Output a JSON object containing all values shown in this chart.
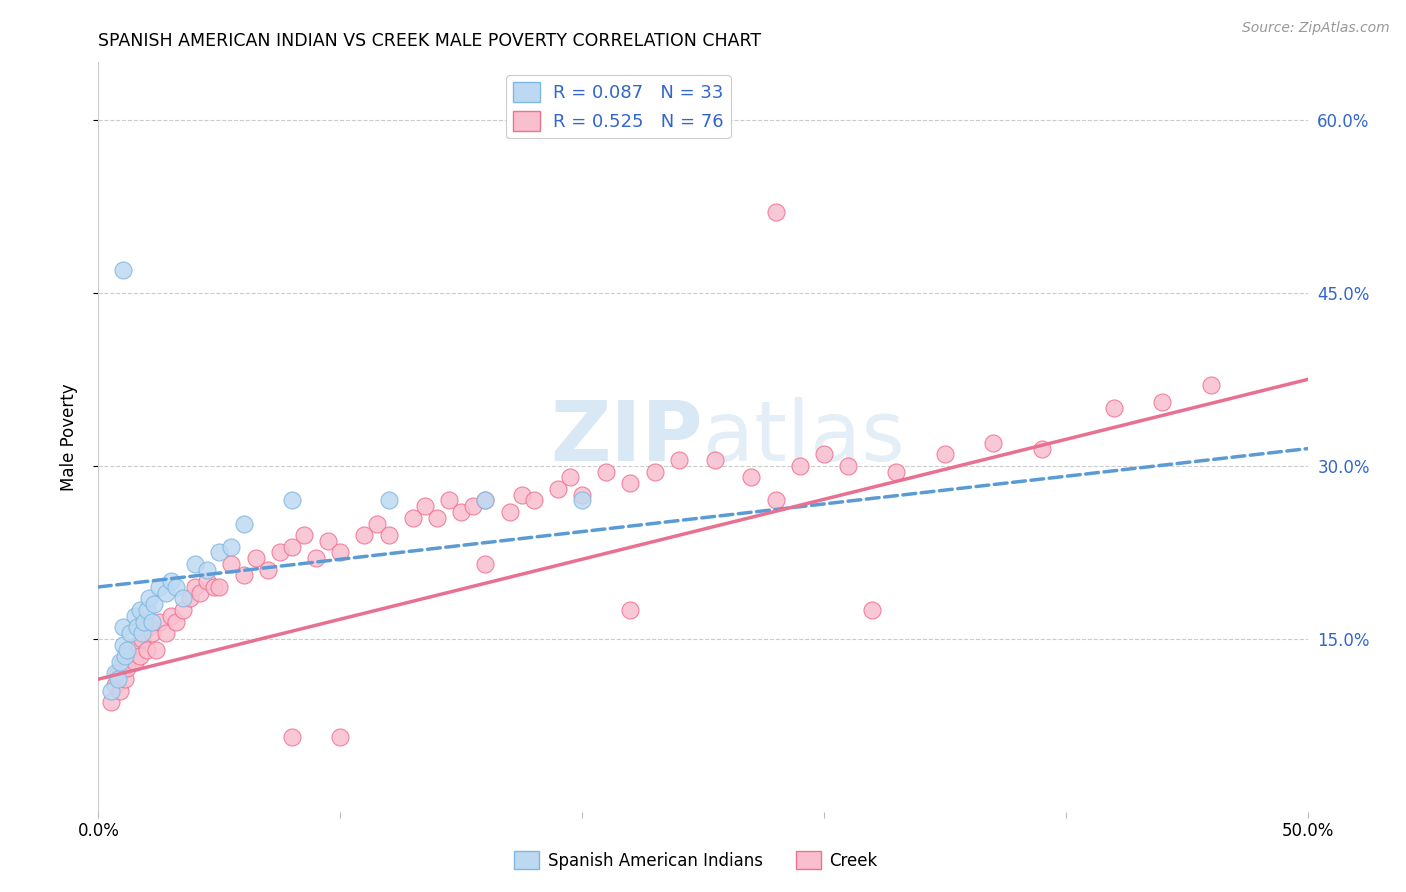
{
  "title": "SPANISH AMERICAN INDIAN VS CREEK MALE POVERTY CORRELATION CHART",
  "source": "Source: ZipAtlas.com",
  "ylabel": "Male Poverty",
  "right_yticks": [
    "60.0%",
    "45.0%",
    "30.0%",
    "15.0%"
  ],
  "right_ytick_vals": [
    0.6,
    0.45,
    0.3,
    0.15
  ],
  "xlim": [
    0.0,
    0.5
  ],
  "ylim": [
    0.0,
    0.65
  ],
  "legend_r1": "R = 0.087",
  "legend_n1": "N = 33",
  "legend_r2": "R = 0.525",
  "legend_n2": "N = 76",
  "color_blue_fill": "#BDD9F2",
  "color_blue_edge": "#7EB8E0",
  "color_pink_fill": "#F9BFCF",
  "color_pink_edge": "#F07090",
  "color_trend_blue": "#5B9BD5",
  "color_trend_pink": "#E87090",
  "color_text_blue": "#3366CC",
  "watermark_color": "#C8DFF0",
  "label1": "Spanish American Indians",
  "label2": "Creek",
  "blue_x": [
    0.005,
    0.007,
    0.008,
    0.009,
    0.01,
    0.01,
    0.011,
    0.012,
    0.013,
    0.015,
    0.016,
    0.017,
    0.018,
    0.019,
    0.02,
    0.021,
    0.022,
    0.023,
    0.025,
    0.028,
    0.03,
    0.032,
    0.035,
    0.04,
    0.045,
    0.05,
    0.055,
    0.06,
    0.08,
    0.12,
    0.16,
    0.2,
    0.01
  ],
  "blue_y": [
    0.105,
    0.12,
    0.115,
    0.13,
    0.145,
    0.16,
    0.135,
    0.14,
    0.155,
    0.17,
    0.16,
    0.175,
    0.155,
    0.165,
    0.175,
    0.185,
    0.165,
    0.18,
    0.195,
    0.19,
    0.2,
    0.195,
    0.185,
    0.215,
    0.21,
    0.225,
    0.23,
    0.25,
    0.27,
    0.27,
    0.27,
    0.27,
    0.47
  ],
  "pink_x": [
    0.005,
    0.007,
    0.008,
    0.009,
    0.01,
    0.011,
    0.012,
    0.013,
    0.015,
    0.016,
    0.017,
    0.018,
    0.02,
    0.021,
    0.022,
    0.024,
    0.025,
    0.028,
    0.03,
    0.032,
    0.035,
    0.038,
    0.04,
    0.042,
    0.045,
    0.048,
    0.05,
    0.055,
    0.06,
    0.065,
    0.07,
    0.075,
    0.08,
    0.085,
    0.09,
    0.095,
    0.1,
    0.11,
    0.115,
    0.12,
    0.13,
    0.135,
    0.14,
    0.145,
    0.15,
    0.155,
    0.16,
    0.17,
    0.175,
    0.18,
    0.19,
    0.195,
    0.2,
    0.21,
    0.22,
    0.23,
    0.24,
    0.255,
    0.27,
    0.28,
    0.29,
    0.3,
    0.31,
    0.33,
    0.35,
    0.37,
    0.39,
    0.42,
    0.44,
    0.46,
    0.28,
    0.32,
    0.22,
    0.16,
    0.1,
    0.08
  ],
  "pink_y": [
    0.095,
    0.11,
    0.12,
    0.105,
    0.13,
    0.115,
    0.125,
    0.14,
    0.13,
    0.145,
    0.135,
    0.15,
    0.14,
    0.16,
    0.155,
    0.14,
    0.165,
    0.155,
    0.17,
    0.165,
    0.175,
    0.185,
    0.195,
    0.19,
    0.2,
    0.195,
    0.195,
    0.215,
    0.205,
    0.22,
    0.21,
    0.225,
    0.23,
    0.24,
    0.22,
    0.235,
    0.225,
    0.24,
    0.25,
    0.24,
    0.255,
    0.265,
    0.255,
    0.27,
    0.26,
    0.265,
    0.27,
    0.26,
    0.275,
    0.27,
    0.28,
    0.29,
    0.275,
    0.295,
    0.285,
    0.295,
    0.305,
    0.305,
    0.29,
    0.52,
    0.3,
    0.31,
    0.3,
    0.295,
    0.31,
    0.32,
    0.315,
    0.35,
    0.355,
    0.37,
    0.27,
    0.175,
    0.175,
    0.215,
    0.065,
    0.065
  ],
  "blue_trend_x": [
    0.0,
    0.5
  ],
  "blue_trend_y": [
    0.195,
    0.315
  ],
  "pink_trend_x": [
    0.0,
    0.5
  ],
  "pink_trend_y": [
    0.115,
    0.375
  ]
}
